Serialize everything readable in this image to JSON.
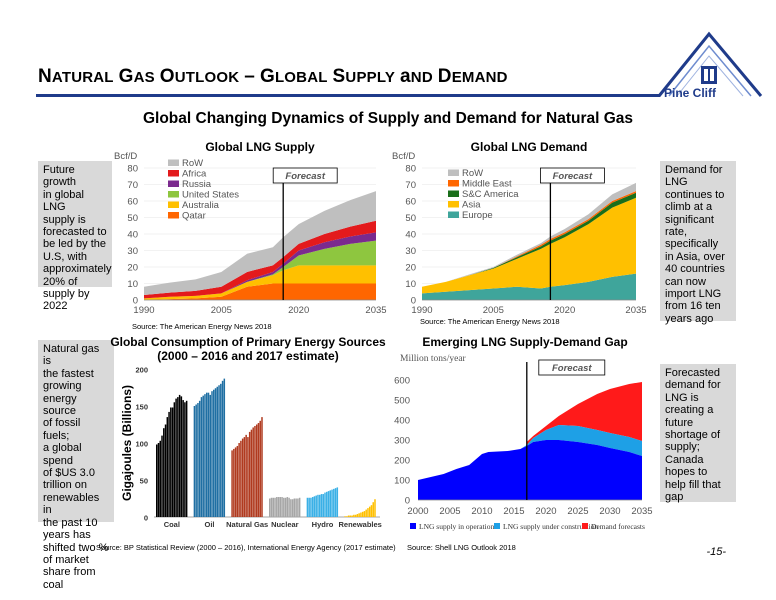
{
  "header": {
    "title": "Natural Gas Outlook – Global Supply and Demand",
    "logo_text": "Pine Cliff"
  },
  "subtitle": "Global Changing Dynamics of Supply and Demand for Natural Gas",
  "notes": {
    "supply": "Future growth\nin global LNG\nsupply is\nforecasted to\nbe led by the\nU.S, with\napproximately\n20% of\nsupply by\n2022",
    "demand": "Demand for\nLNG\ncontinues to\nclimb at a\nsignificant\nrate,\nspecifically\nin Asia, over\n40 countries\ncan now\nimport LNG\nfrom 16 ten\nyears ago",
    "energy": "Natural gas is\nthe fastest\ngrowing\nenergy source\nof fossil fuels;\na global spend\nof $US 3.0\ntrillion on\nrenewables in\nthe past 10\nyears has\nshifted two %\nof market\nshare from\ncoal",
    "gap": "Forecasted\ndemand for\nLNG is\ncreating a\nfuture\nshortage of\nsupply;\nCanada\nhopes to\nhelp fill that\ngap"
  },
  "sources": {
    "supply": "Source: The American Energy News 2018",
    "demand": "Source: The American Energy News 2018",
    "energy": "Source: BP Statistical Review (2000 – 2016), International Energy Agency (2017 estimate)",
    "gap": "Source: Shell LNG Outlook 2018"
  },
  "page_number": "-15-",
  "colors": {
    "accent": "#1f3b8a",
    "row": "#bfbfbf",
    "africa": "#e31a1c",
    "russia": "#7b2a8e",
    "us": "#8ec63f",
    "australia": "#ffc000",
    "qatar": "#ff6600",
    "middle_east": "#ff6600",
    "sc_america": "#1a6e1a",
    "asia": "#ffc000",
    "europe": "#3fa59b",
    "coal": "#000000",
    "oil": "#1f6fa3",
    "gas": "#b03a1f",
    "nuclear": "#a6a6a6",
    "hydro": "#3ab0e6",
    "renewables": "#ffc000",
    "lng_operation": "#0000ff",
    "lng_construction": "#1ea0e6",
    "lng_demand": "#ff1a1a"
  },
  "chart_data": [
    {
      "type": "area",
      "title": "Global LNG Supply",
      "unit": "Bcf/D",
      "annotation": "Forecast",
      "forecast_year": 2017,
      "x": [
        1990,
        1995,
        2000,
        2005,
        2010,
        2015,
        2017,
        2020,
        2025,
        2030,
        2035
      ],
      "x_ticks": [
        1990,
        2005,
        2020,
        2035
      ],
      "ylim": [
        0,
        80
      ],
      "y_ticks": [
        0,
        10,
        20,
        30,
        40,
        50,
        60,
        70,
        80
      ],
      "series": [
        {
          "name": "Qatar",
          "color_key": "qatar",
          "values": [
            0,
            0.5,
            1,
            2,
            8,
            10,
            10,
            10,
            10,
            10,
            10
          ]
        },
        {
          "name": "Australia",
          "color_key": "australia",
          "values": [
            1,
            1.5,
            1.5,
            2,
            3,
            5,
            8,
            11,
            11,
            11,
            11
          ]
        },
        {
          "name": "United States",
          "color_key": "us",
          "values": [
            0,
            0,
            0,
            0,
            0,
            0.5,
            2,
            6,
            10,
            13,
            15
          ]
        },
        {
          "name": "Russia",
          "color_key": "russia",
          "values": [
            0,
            0,
            0,
            0,
            1,
            1.5,
            2,
            3,
            4,
            4.5,
            5
          ]
        },
        {
          "name": "Africa",
          "color_key": "africa",
          "values": [
            2,
            2.5,
            3,
            4,
            5,
            4,
            4,
            4,
            5,
            6,
            7
          ]
        },
        {
          "name": "RoW",
          "color_key": "row",
          "values": [
            5,
            6,
            7,
            9,
            11,
            11,
            12,
            12,
            14,
            16,
            18
          ]
        }
      ]
    },
    {
      "type": "area",
      "title": "Global LNG Demand",
      "unit": "Bcf/D",
      "annotation": "Forecast",
      "forecast_year": 2017,
      "x": [
        1990,
        1995,
        2000,
        2005,
        2010,
        2015,
        2017,
        2020,
        2025,
        2030,
        2035
      ],
      "x_ticks": [
        1990,
        2005,
        2020,
        2035
      ],
      "ylim": [
        0,
        80
      ],
      "y_ticks": [
        0,
        10,
        20,
        30,
        40,
        50,
        60,
        70,
        80
      ],
      "series": [
        {
          "name": "Europe",
          "color_key": "europe",
          "values": [
            4,
            5,
            6,
            7,
            8,
            7,
            8,
            9,
            11,
            14,
            16
          ]
        },
        {
          "name": "Asia",
          "color_key": "asia",
          "values": [
            4,
            6,
            9,
            12,
            17,
            24,
            26,
            29,
            35,
            42,
            46
          ]
        },
        {
          "name": "S&C America",
          "color_key": "sc_america",
          "values": [
            0,
            0,
            0,
            0.5,
            1,
            1.5,
            2,
            2,
            2,
            3,
            3
          ]
        },
        {
          "name": "Middle East",
          "color_key": "middle_east",
          "values": [
            0,
            0,
            0,
            0,
            0.5,
            1,
            1,
            1,
            1,
            1,
            1
          ]
        },
        {
          "name": "RoW",
          "color_key": "row",
          "values": [
            0,
            0,
            0.5,
            0.5,
            1,
            1,
            1.5,
            2,
            3,
            4,
            5
          ]
        }
      ]
    },
    {
      "type": "bar",
      "title": "Global Consumption of Primary Energy Sources (2000 – 2016 and 2017 estimate)",
      "ylabel": "Gigajoules (Billions)",
      "ylim": [
        0,
        200
      ],
      "y_ticks": [
        0,
        50,
        100,
        150,
        200
      ],
      "groups": [
        {
          "name": "Coal",
          "color_key": "coal",
          "values": [
            98,
            100,
            103,
            110,
            120,
            125,
            135,
            142,
            148,
            148,
            155,
            160,
            162,
            165,
            163,
            158,
            155,
            157
          ]
        },
        {
          "name": "Oil",
          "color_key": "oil",
          "values": [
            150,
            152,
            154,
            157,
            162,
            164,
            166,
            168,
            168,
            165,
            170,
            172,
            174,
            176,
            178,
            180,
            184,
            187
          ]
        },
        {
          "name": "Natural Gas",
          "color_key": "gas",
          "values": [
            90,
            92,
            94,
            96,
            100,
            103,
            106,
            108,
            111,
            108,
            115,
            118,
            121,
            123,
            125,
            127,
            130,
            135
          ]
        },
        {
          "name": "Nuclear",
          "color_key": "nuclear",
          "values": [
            25,
            26,
            26,
            26,
            27,
            27,
            27,
            27,
            26,
            26,
            27,
            26,
            24,
            24,
            25,
            25,
            25,
            26
          ]
        },
        {
          "name": "Hydro",
          "color_key": "hydro",
          "values": [
            26,
            26,
            26,
            27,
            28,
            29,
            30,
            30,
            31,
            31,
            33,
            34,
            35,
            36,
            37,
            38,
            39,
            40
          ]
        },
        {
          "name": "Renewables",
          "color_key": "renewables",
          "values": [
            1,
            1,
            2,
            2,
            2,
            3,
            3,
            4,
            5,
            6,
            7,
            8,
            10,
            12,
            14,
            16,
            20,
            24
          ]
        }
      ]
    },
    {
      "type": "area",
      "title": "Emerging LNG Supply-Demand Gap",
      "unit": "Million tons/year",
      "annotation": "Forecast",
      "forecast_year": 2017,
      "x": [
        2000,
        2002,
        2004,
        2006,
        2008,
        2010,
        2011,
        2014,
        2016,
        2017,
        2018,
        2020,
        2022,
        2025,
        2028,
        2030,
        2033,
        2035
      ],
      "x_ticks": [
        2000,
        2005,
        2010,
        2015,
        2020,
        2025,
        2030,
        2035
      ],
      "ylim": [
        0,
        600
      ],
      "y_ticks": [
        0,
        100,
        200,
        300,
        400,
        500,
        600
      ],
      "operation": [
        100,
        115,
        130,
        155,
        175,
        230,
        240,
        245,
        255,
        270,
        290,
        300,
        300,
        290,
        275,
        260,
        240,
        220
      ],
      "construction_total": [
        100,
        115,
        130,
        155,
        175,
        230,
        240,
        245,
        255,
        275,
        310,
        350,
        375,
        370,
        350,
        335,
        315,
        295
      ],
      "demand_upper": [
        null,
        null,
        null,
        null,
        null,
        null,
        null,
        null,
        null,
        290,
        320,
        370,
        420,
        480,
        530,
        555,
        580,
        590
      ],
      "legend": [
        "LNG supply in operation",
        "LNG supply under construction",
        "Demand forecasts"
      ]
    }
  ]
}
